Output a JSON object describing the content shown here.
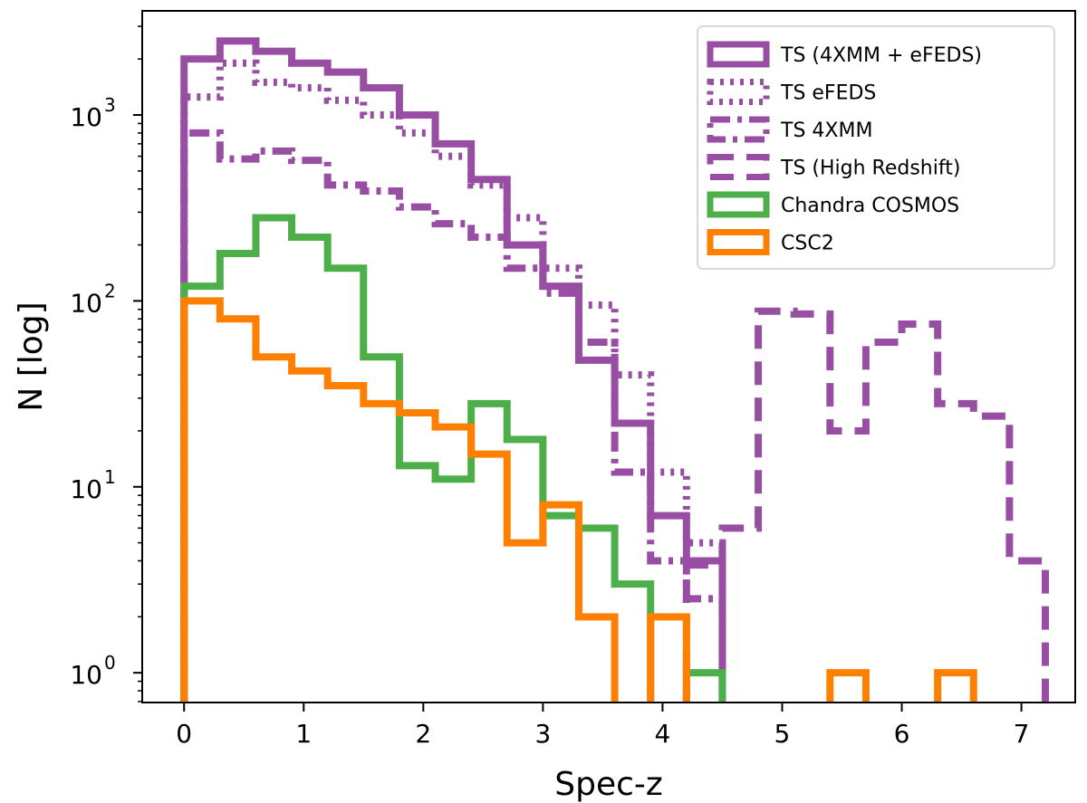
{
  "chart_data": {
    "type": "histogram",
    "title": "",
    "xlabel": "Spec-z",
    "ylabel": "N [log]",
    "xlim": [
      -0.35,
      7.45
    ],
    "ylim_log10": [
      -0.16,
      3.56
    ],
    "yscale": "log",
    "xticks": [
      0,
      1,
      2,
      3,
      4,
      5,
      6,
      7
    ],
    "xtick_labels": [
      "0",
      "1",
      "2",
      "3",
      "4",
      "5",
      "6",
      "7"
    ],
    "yticks": [
      0,
      1,
      2,
      3
    ],
    "ytick_labels": [
      {
        "base": "10",
        "exp": "0"
      },
      {
        "base": "10",
        "exp": "1"
      },
      {
        "base": "10",
        "exp": "2"
      },
      {
        "base": "10",
        "exp": "3"
      }
    ],
    "legend_position": "top-right",
    "series": [
      {
        "name": "TS (4XMM + eFEDS)",
        "color": "#984ea3",
        "style": "solid",
        "edges": [
          0,
          0.3,
          0.6,
          0.9,
          1.2,
          1.5,
          1.8,
          2.1,
          2.4,
          2.7,
          3.0,
          3.3,
          3.6,
          3.9,
          4.2,
          4.5
        ],
        "counts": [
          2000,
          2500,
          2200,
          1900,
          1700,
          1400,
          1000,
          700,
          450,
          200,
          120,
          48,
          22,
          7,
          4
        ]
      },
      {
        "name": "TS eFEDS",
        "color": "#984ea3",
        "style": "dotted",
        "edges": [
          0,
          0.3,
          0.6,
          0.9,
          1.2,
          1.5,
          1.8,
          2.1,
          2.4,
          2.7,
          3.0,
          3.3,
          3.6,
          3.9,
          4.2,
          4.5
        ],
        "counts": [
          1250,
          1900,
          1500,
          1400,
          1200,
          1000,
          800,
          600,
          420,
          280,
          150,
          95,
          40,
          12,
          5
        ]
      },
      {
        "name": "TS 4XMM",
        "color": "#984ea3",
        "style": "dashdot",
        "edges": [
          0,
          0.3,
          0.6,
          0.9,
          1.2,
          1.5,
          1.8,
          2.1,
          2.4,
          2.7,
          3.0,
          3.3,
          3.6,
          3.9,
          4.2,
          4.5
        ],
        "counts": [
          800,
          580,
          640,
          570,
          420,
          390,
          320,
          260,
          220,
          150,
          110,
          60,
          12,
          4,
          2.5
        ]
      },
      {
        "name": "TS (High Redshift)",
        "color": "#984ea3",
        "style": "dashed",
        "edges": [
          4.2,
          4.5,
          4.8,
          5.1,
          5.4,
          5.7,
          6.0,
          6.3,
          6.6,
          6.9,
          7.2
        ],
        "counts": [
          3.8,
          6,
          88,
          85,
          20,
          60,
          75,
          28,
          24,
          4
        ]
      },
      {
        "name": "Chandra COSMOS",
        "color": "#4daf4a",
        "style": "solid",
        "edges": [
          0,
          0.3,
          0.6,
          0.9,
          1.2,
          1.5,
          1.8,
          2.1,
          2.4,
          2.7,
          3.0,
          3.3,
          3.6,
          3.9,
          4.2,
          4.5
        ],
        "counts": [
          120,
          180,
          280,
          220,
          150,
          50,
          13,
          11,
          28,
          18,
          7,
          6,
          3,
          0,
          1
        ]
      },
      {
        "name": "CSC2",
        "color": "#ff7f00",
        "style": "solid",
        "edges": [
          0,
          0.3,
          0.6,
          0.9,
          1.2,
          1.5,
          1.8,
          2.1,
          2.4,
          2.7,
          3.0,
          3.3,
          3.6,
          3.9,
          4.2,
          4.5,
          4.8,
          5.1,
          5.4,
          5.7,
          6.0,
          6.3,
          6.6
        ],
        "counts": [
          100,
          80,
          50,
          42,
          35,
          28,
          25,
          21,
          15,
          5,
          8,
          2,
          0,
          2,
          0,
          0,
          0,
          0,
          1,
          0,
          0,
          1
        ]
      }
    ]
  }
}
